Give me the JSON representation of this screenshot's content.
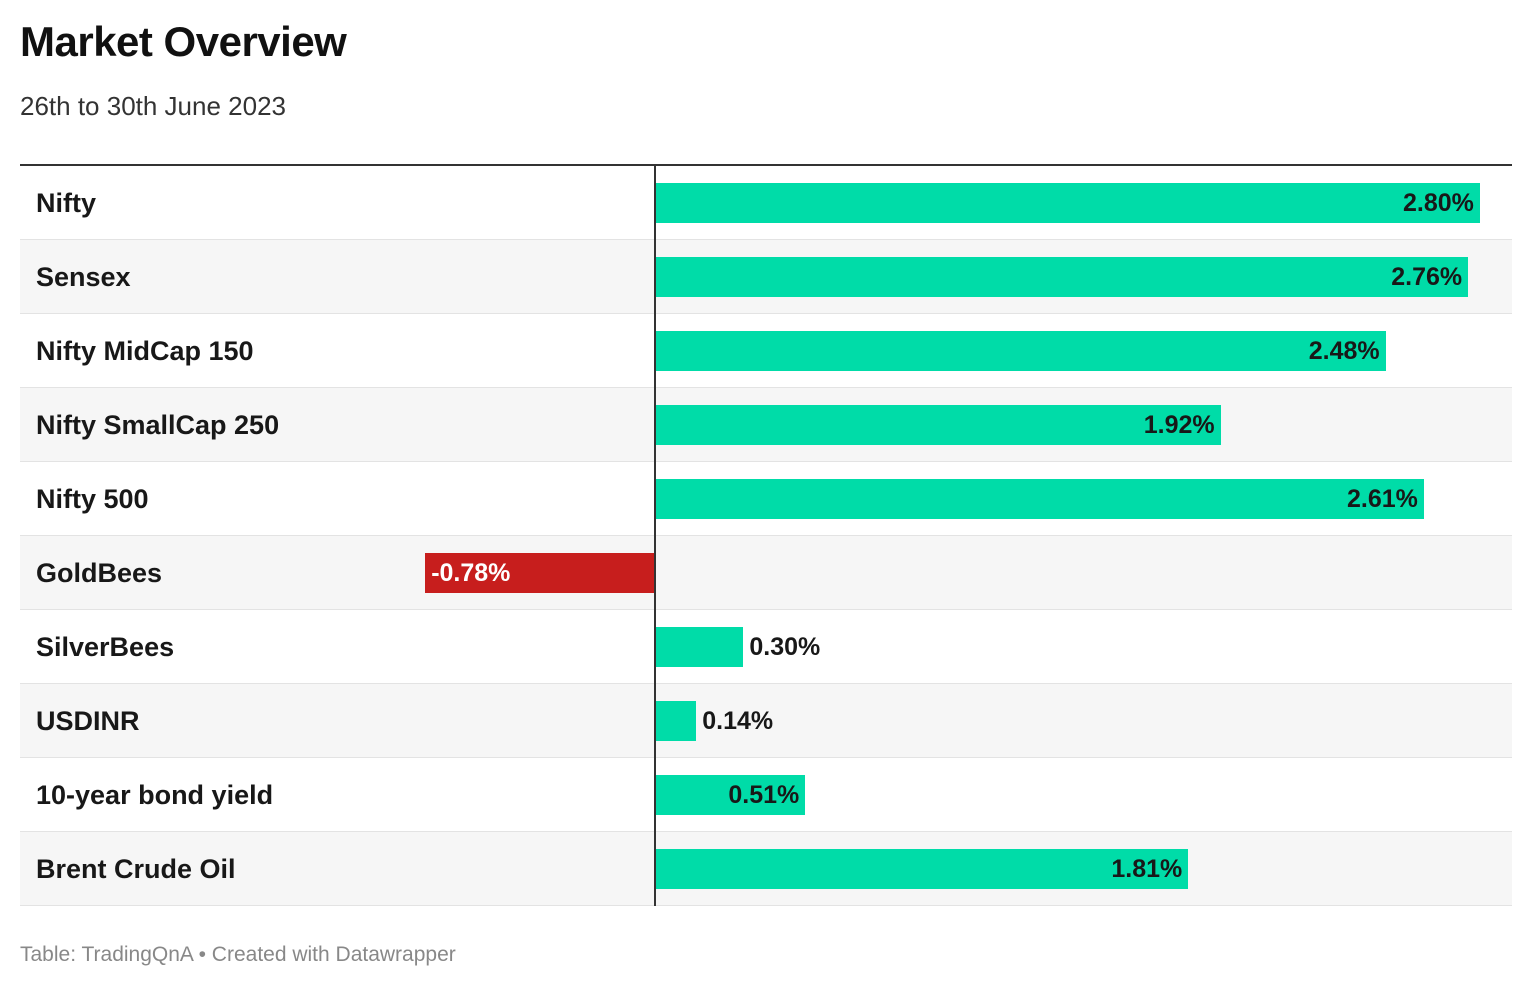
{
  "header": {
    "title": "Market Overview",
    "subtitle": "26th to 30th June 2023"
  },
  "footer": {
    "source": "Table: TradingQnA • Created with Datawrapper"
  },
  "colors": {
    "positive": "#00dca8",
    "negative": "#c71e1d",
    "axis": "#333333",
    "row_alt": "#f6f6f6"
  },
  "chart_data": {
    "type": "bar",
    "orientation": "horizontal",
    "title": "Market Overview",
    "subtitle": "26th to 30th June 2023",
    "categories": [
      "Nifty",
      "Sensex",
      "Nifty MidCap 150",
      "Nifty SmallCap 250",
      "Nifty 500",
      "GoldBees",
      "SilverBees",
      "USDINR",
      "10-year bond yield",
      "Brent Crude Oil"
    ],
    "values": [
      2.8,
      2.76,
      2.48,
      1.92,
      2.61,
      -0.78,
      0.3,
      0.14,
      0.51,
      1.81
    ],
    "value_labels": [
      "2.80%",
      "2.76%",
      "2.48%",
      "1.92%",
      "2.61%",
      "-0.78%",
      "0.30%",
      "0.14%",
      "0.51%",
      "1.81%"
    ],
    "unit": "%",
    "xlim": [
      -2.15,
      2.91
    ],
    "grid": false
  }
}
